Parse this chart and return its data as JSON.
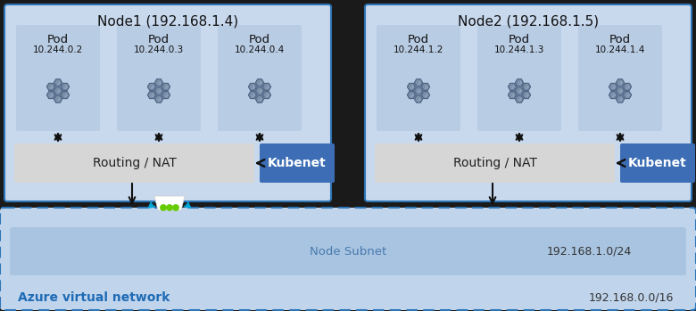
{
  "node1_label": "Node1 (192.168.1.4)",
  "node2_label": "Node2 (192.168.1.5)",
  "node1_pods": [
    [
      "Pod",
      "10.244.0.2"
    ],
    [
      "Pod",
      "10.244.0.3"
    ],
    [
      "Pod",
      "10.244.0.4"
    ]
  ],
  "node2_pods": [
    [
      "Pod",
      "10.244.1.2"
    ],
    [
      "Pod",
      "10.244.1.3"
    ],
    [
      "Pod",
      "10.244.1.4"
    ]
  ],
  "routing_label": "Routing / NAT",
  "kubenet_label": "Kubenet",
  "node_subnet_label": "Node Subnet",
  "node_subnet_cidr": "192.168.1.0/24",
  "vnet_label": "Azure virtual network",
  "vnet_cidr": "192.168.0.0/16",
  "color_bg": "#1a1a1a",
  "color_node_bg": "#c8d9ee",
  "color_node_border": "#2e75b6",
  "color_pod_bg": "#b8cce4",
  "color_routing_bg": "#d6d6d6",
  "color_kubenet_bg": "#3d6eb5",
  "color_kubenet_text": "#ffffff",
  "color_vnet_outer_bg": "#c0d4ec",
  "color_vnet_inner_bg": "#a8c4e0",
  "color_vnet_label": "#1e6bb5",
  "color_subnet_text": "#4a7ab0",
  "color_arrow": "#111111",
  "color_pod_icon_body": "#7a8fa8",
  "color_pod_icon_dark": "#4a6080",
  "color_pod_icon_light": "#9aaec8",
  "figsize": [
    7.8,
    3.49
  ],
  "dpi": 100
}
